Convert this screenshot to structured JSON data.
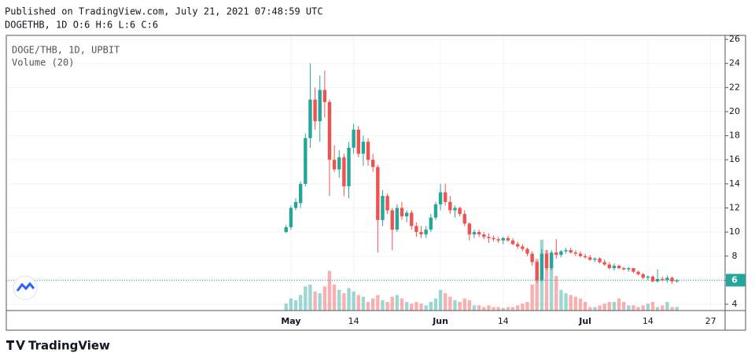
{
  "header": {
    "published": "Published on TradingView.com, July 21, 2021 07:48:59 UTC",
    "symbol_line": "DOGETHB, 1D O:6 H:6 L:6 C:6"
  },
  "footer": {
    "brand": "TradingView"
  },
  "chart_data": {
    "type": "candlestick",
    "title": "DOGE/THB, 1D, UPBIT",
    "indicator": "Volume (20)",
    "up_color": "#26a69a",
    "down_color": "#ef5350",
    "grid": true,
    "last_price": 6,
    "ylim": [
      3.48,
      26.33
    ],
    "yticks": [
      4,
      6,
      8,
      10,
      12,
      14,
      16,
      18,
      20,
      22,
      24,
      26
    ],
    "xlim": [
      "2021-03-03",
      "2021-07-30"
    ],
    "xticks": [
      {
        "value": "2021-05-01",
        "label": "May"
      },
      {
        "value": "2021-05-14",
        "label": "14"
      },
      {
        "value": "2021-06-01",
        "label": "Jun"
      },
      {
        "value": "2021-06-14",
        "label": "14"
      },
      {
        "value": "2021-07-01",
        "label": "Jul"
      },
      {
        "value": "2021-07-14",
        "label": "14"
      },
      {
        "value": "2021-07-27",
        "label": "27"
      }
    ],
    "x": [
      "2021-04-30",
      "2021-05-01",
      "2021-05-02",
      "2021-05-03",
      "2021-05-04",
      "2021-05-05",
      "2021-05-06",
      "2021-05-07",
      "2021-05-08",
      "2021-05-09",
      "2021-05-10",
      "2021-05-11",
      "2021-05-12",
      "2021-05-13",
      "2021-05-14",
      "2021-05-15",
      "2021-05-16",
      "2021-05-17",
      "2021-05-18",
      "2021-05-19",
      "2021-05-20",
      "2021-05-21",
      "2021-05-22",
      "2021-05-23",
      "2021-05-24",
      "2021-05-25",
      "2021-05-26",
      "2021-05-27",
      "2021-05-28",
      "2021-05-29",
      "2021-05-30",
      "2021-05-31",
      "2021-06-01",
      "2021-06-02",
      "2021-06-03",
      "2021-06-04",
      "2021-06-05",
      "2021-06-06",
      "2021-06-07",
      "2021-06-08",
      "2021-06-09",
      "2021-06-10",
      "2021-06-11",
      "2021-06-12",
      "2021-06-13",
      "2021-06-14",
      "2021-06-15",
      "2021-06-16",
      "2021-06-17",
      "2021-06-18",
      "2021-06-19",
      "2021-06-20",
      "2021-06-21",
      "2021-06-22",
      "2021-06-23",
      "2021-06-24",
      "2021-06-25",
      "2021-06-26",
      "2021-06-27",
      "2021-06-28",
      "2021-06-29",
      "2021-06-30",
      "2021-07-01",
      "2021-07-02",
      "2021-07-03",
      "2021-07-04",
      "2021-07-05",
      "2021-07-06",
      "2021-07-07",
      "2021-07-08",
      "2021-07-09",
      "2021-07-10",
      "2021-07-11",
      "2021-07-12",
      "2021-07-13",
      "2021-07-14",
      "2021-07-15",
      "2021-07-16",
      "2021-07-17",
      "2021-07-18",
      "2021-07-19",
      "2021-07-20"
    ],
    "open": [
      10.0,
      10.4,
      12.0,
      12.4,
      14.0,
      17.8,
      21,
      19.2,
      21.8,
      20.8,
      16,
      15.2,
      16.2,
      13.8,
      17,
      18.5,
      16.5,
      17.5,
      16,
      15.4,
      11,
      13,
      11.8,
      10.2,
      12,
      11.3,
      11.6,
      10.5,
      10,
      9.8,
      10.2,
      11.2,
      12.3,
      13.3,
      12.5,
      11.8,
      12,
      11.5,
      10.7,
      9.8,
      10,
      9.8,
      9.6,
      9.5,
      9.4,
      9.3,
      9.5,
      9.3,
      9.0,
      8.8,
      8.6,
      8.2,
      7.5,
      6.0,
      8.2,
      7.0,
      8.3,
      8.1,
      8.4,
      8.5,
      8.3,
      8.2,
      8.0,
      7.9,
      7.7,
      7.8,
      7.5,
      7.3,
      7.0,
      7.2,
      7.0,
      6.9,
      7.0,
      6.7,
      6.5,
      6.2,
      6.3,
      5.9,
      6.1,
      6.0,
      6.2,
      5.9
    ],
    "high": [
      10.6,
      12.2,
      12.8,
      14.2,
      18.2,
      24,
      22,
      23,
      23.4,
      21,
      17.2,
      16.8,
      16.5,
      17.5,
      19,
      18.8,
      18,
      17.8,
      16.5,
      15.6,
      13.5,
      13.2,
      12,
      12.3,
      12.5,
      11.8,
      11.8,
      10.8,
      10.5,
      10.5,
      11.5,
      12.5,
      14,
      14,
      13,
      12.2,
      12.1,
      11.8,
      10.8,
      10.2,
      10.2,
      10,
      9.9,
      9.7,
      9.6,
      9.6,
      9.7,
      9.5,
      9.2,
      9.0,
      8.7,
      8.4,
      7.6,
      8.6,
      8.5,
      8.5,
      9.4,
      8.5,
      8.7,
      8.7,
      8.5,
      8.4,
      8.2,
      8.1,
      7.9,
      7.9,
      7.7,
      7.5,
      7.4,
      7.3,
      7.1,
      7.1,
      7.0,
      6.8,
      6.6,
      6.4,
      6.4,
      6.9,
      6.3,
      6.4,
      6.3,
      6.1
    ],
    "low": [
      9.9,
      10.2,
      11.8,
      12.0,
      13.8,
      17,
      18.5,
      17.5,
      19.5,
      13,
      15,
      14.5,
      13,
      12.8,
      16.5,
      16.2,
      15.5,
      15.5,
      15,
      8.3,
      10.5,
      11.5,
      8.5,
      10,
      11,
      10.8,
      10.2,
      9.6,
      9.5,
      9.5,
      10,
      11,
      11.8,
      12.2,
      11.5,
      11.2,
      11.3,
      10.5,
      9.3,
      9.5,
      9.6,
      9.4,
      9.1,
      9.2,
      9.1,
      9.0,
      9.2,
      8.9,
      8.6,
      8.4,
      8.0,
      7.2,
      5.8,
      5.9,
      6.8,
      6.8,
      7.8,
      7.9,
      8.2,
      8.2,
      8.0,
      7.9,
      7.8,
      7.6,
      7.5,
      7.4,
      7.2,
      6.9,
      6.8,
      6.9,
      6.8,
      6.7,
      6.6,
      6.4,
      6.1,
      6.0,
      5.8,
      5.8,
      5.9,
      5.8,
      5.7,
      5.8
    ],
    "close": [
      10.4,
      12.0,
      12.5,
      14.0,
      17.8,
      21,
      19.2,
      21.8,
      20.8,
      16,
      15.2,
      16.2,
      13.8,
      17,
      18.5,
      16.5,
      17.5,
      16,
      15.4,
      11,
      13,
      11.8,
      10.2,
      12,
      11.3,
      11.6,
      10.5,
      10,
      9.8,
      10.2,
      11.2,
      12.3,
      13.3,
      12.5,
      11.8,
      12,
      11.5,
      10.7,
      9.8,
      10,
      9.8,
      9.6,
      9.5,
      9.4,
      9.3,
      9.5,
      9.3,
      9.0,
      8.8,
      8.6,
      8.2,
      7.5,
      6.0,
      8.2,
      7.0,
      8.3,
      8.1,
      8.4,
      8.5,
      8.3,
      8.2,
      8.0,
      7.9,
      7.7,
      7.8,
      7.5,
      7.3,
      7.0,
      7.2,
      7.0,
      6.9,
      7.0,
      6.7,
      6.5,
      6.2,
      6.3,
      5.9,
      6.1,
      6.0,
      6.2,
      5.9,
      6.0
    ],
    "volume": [
      8,
      14,
      12,
      18,
      28,
      30,
      22,
      20,
      28,
      46,
      30,
      24,
      20,
      26,
      22,
      18,
      16,
      10,
      14,
      18,
      12,
      10,
      16,
      18,
      14,
      10,
      8,
      10,
      8,
      6,
      10,
      14,
      24,
      20,
      16,
      12,
      10,
      14,
      12,
      6,
      6,
      4,
      6,
      4,
      4,
      3,
      4,
      4,
      6,
      8,
      10,
      30,
      60,
      82,
      70,
      50,
      40,
      24,
      20,
      18,
      16,
      14,
      10,
      4,
      4,
      6,
      8,
      10,
      10,
      14,
      10,
      6,
      6,
      4,
      6,
      8,
      10,
      4,
      6,
      10,
      4,
      4
    ]
  }
}
